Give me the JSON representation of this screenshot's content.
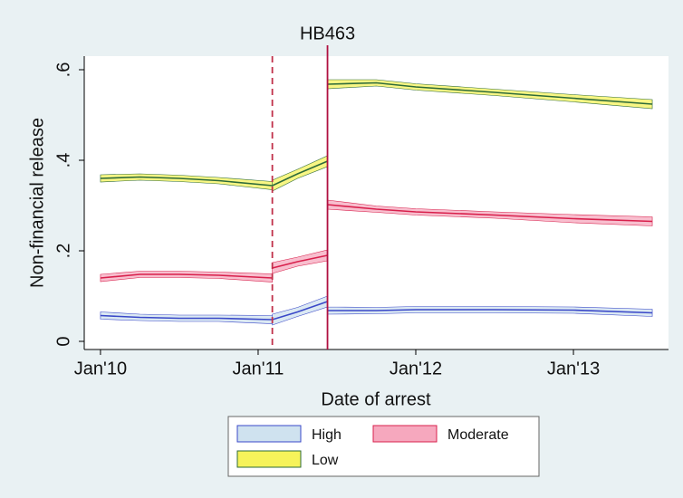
{
  "chart_data": {
    "type": "line",
    "vline_label": "HB463",
    "xlabel": "Date of arrest",
    "ylabel": "Non-financial release",
    "x": [
      2010.0,
      2010.25,
      2010.5,
      2010.75,
      2011.09,
      2011.09,
      2011.09,
      2011.25,
      2011.44,
      2011.44,
      2011.44,
      2011.75,
      2012.0,
      2012.5,
      2013.0,
      2013.5
    ],
    "series": [
      {
        "name": "High",
        "color": "#cfe2ef",
        "line_color": "#3a48c8",
        "values": [
          0.057,
          0.053,
          0.051,
          0.051,
          0.048,
          null,
          0.048,
          0.065,
          0.088,
          null,
          0.068,
          0.068,
          0.07,
          0.07,
          0.069,
          0.063
        ],
        "lower": [
          0.049,
          0.046,
          0.044,
          0.044,
          0.039,
          null,
          0.036,
          0.055,
          0.076,
          null,
          0.06,
          0.061,
          0.063,
          0.063,
          0.062,
          0.055
        ],
        "upper": [
          0.065,
          0.06,
          0.058,
          0.058,
          0.057,
          null,
          0.06,
          0.075,
          0.1,
          null,
          0.076,
          0.075,
          0.077,
          0.077,
          0.076,
          0.071
        ]
      },
      {
        "name": "Moderate",
        "color": "#f6a8be",
        "line_color": "#d8204c",
        "values": [
          0.14,
          0.148,
          0.148,
          0.146,
          0.14,
          null,
          0.162,
          0.176,
          0.19,
          null,
          0.302,
          0.292,
          0.286,
          0.279,
          0.271,
          0.265
        ],
        "lower": [
          0.132,
          0.141,
          0.141,
          0.139,
          0.131,
          null,
          0.15,
          0.166,
          0.178,
          null,
          0.292,
          0.285,
          0.279,
          0.272,
          0.262,
          0.255
        ],
        "upper": [
          0.148,
          0.155,
          0.155,
          0.153,
          0.149,
          null,
          0.174,
          0.186,
          0.202,
          null,
          0.312,
          0.299,
          0.293,
          0.286,
          0.28,
          0.275
        ]
      },
      {
        "name": "Low",
        "color": "#f6f35a",
        "line_color": "#2e6b3a",
        "values": [
          0.36,
          0.363,
          0.36,
          0.355,
          0.344,
          null,
          0.344,
          0.37,
          0.398,
          null,
          0.568,
          0.571,
          0.562,
          0.55,
          0.537,
          0.524
        ],
        "lower": [
          0.352,
          0.356,
          0.353,
          0.348,
          0.335,
          null,
          0.332,
          0.36,
          0.386,
          null,
          0.558,
          0.564,
          0.555,
          0.543,
          0.529,
          0.514
        ],
        "upper": [
          0.368,
          0.37,
          0.367,
          0.362,
          0.353,
          null,
          0.356,
          0.38,
          0.41,
          null,
          0.578,
          0.578,
          0.569,
          0.557,
          0.545,
          0.534
        ]
      }
    ],
    "vlines": [
      {
        "x": 2011.09,
        "style": "dashed",
        "color": "#c0304a"
      },
      {
        "x": 2011.44,
        "style": "solid",
        "color": "#b01040",
        "labelled": true
      }
    ],
    "xlim": [
      2009.897,
      2013.603
    ],
    "xticks": [
      {
        "value": 2010,
        "label": "Jan'10"
      },
      {
        "value": 2011,
        "label": "Jan'11"
      },
      {
        "value": 2012,
        "label": "Jan'12"
      },
      {
        "value": 2013,
        "label": "Jan'13"
      }
    ],
    "ylim": [
      -0.018,
      0.63
    ],
    "yticks": [
      0,
      {
        "value": 0.2,
        "label": ".2"
      },
      {
        "value": 0.4,
        "label": ".4"
      },
      {
        "value": 0.6,
        "label": ".6"
      }
    ],
    "grid": false,
    "legend": "bottom"
  }
}
